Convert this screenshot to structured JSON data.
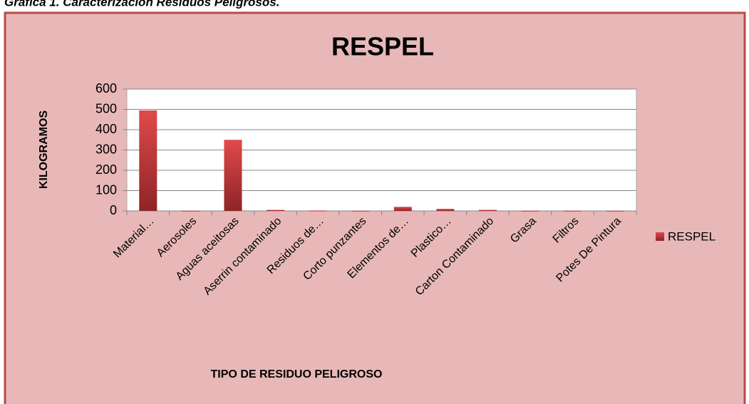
{
  "caption": "Grafica 1. Caracterización Residuos Peligrosos.",
  "chart_data": {
    "type": "bar",
    "title": "RESPEL",
    "x_label": "TIPO DE RESIDUO PELIGROSO",
    "y_label": "KILOGRAMOS",
    "categories": [
      "Material…",
      "Aerosoles",
      "Aguas aceitosas",
      "Aserrin contaminado",
      "Residuos de…",
      "Corto punzantes",
      "Elementos de…",
      "Plastico…",
      "Carton Contaminado",
      "Grasa",
      "Filtros",
      "Potes De Pintura"
    ],
    "series": [
      {
        "name": "RESPEL",
        "color": "#c0393b",
        "values": [
          495,
          1,
          350,
          5,
          2,
          1,
          20,
          10,
          5,
          1,
          1,
          1
        ]
      }
    ],
    "ylim": [
      0,
      600
    ],
    "yticks": [
      0,
      100,
      200,
      300,
      400,
      500,
      600
    ],
    "grid": true,
    "legend": "right"
  }
}
